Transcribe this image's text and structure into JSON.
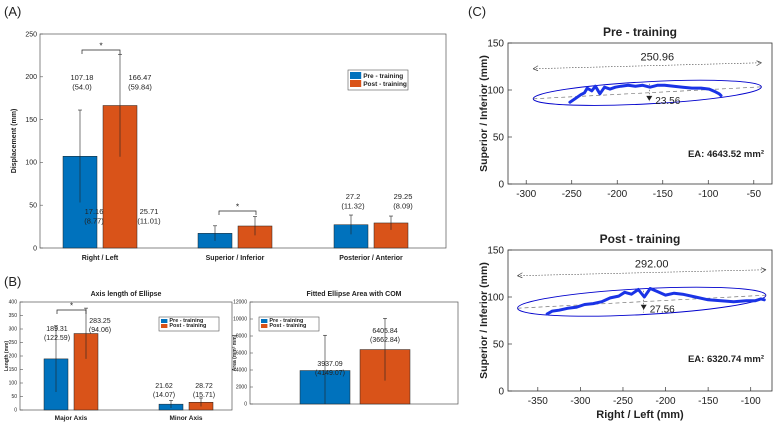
{
  "panel_labels": [
    "(A)",
    "(B)",
    "(C)"
  ],
  "colors": {
    "pre": "#0072BD",
    "post": "#D95319",
    "ellipse": "#0000CC",
    "trace": "#1a33e6"
  },
  "chart_data": [
    {
      "id": "A",
      "type": "bar",
      "title": "",
      "ylabel": "Displacement (mm)",
      "xlabel": "",
      "ylim": [
        0,
        250
      ],
      "yticks": [
        0,
        50,
        100,
        150,
        200,
        250
      ],
      "categories": [
        "Right / Left",
        "Superior / Inferior",
        "Posterior / Anterior"
      ],
      "series": [
        {
          "name": "Pre - training",
          "values": [
            107.18,
            17.16,
            27.2
          ],
          "errors": [
            54.0,
            8.77,
            11.32
          ]
        },
        {
          "name": "Post - training",
          "values": [
            166.47,
            25.71,
            29.25
          ],
          "errors": [
            59.84,
            11.01,
            8.09
          ]
        }
      ],
      "labels": [
        [
          "107.18",
          "(54.0)",
          "166.47",
          "(59.84)"
        ],
        [
          "17.16",
          "(8.77)",
          "25.71",
          "(11.01)"
        ],
        [
          "27.2",
          "(11.32)",
          "29.25",
          "(8.09)"
        ]
      ],
      "significance": [
        "*",
        "*",
        ""
      ],
      "legend_position": "top-right"
    },
    {
      "id": "B1",
      "type": "bar",
      "title": "Axis length of Ellipse",
      "ylabel": "Length (mm)",
      "xlabel": "",
      "ylim": [
        0,
        400
      ],
      "yticks": [
        0,
        50,
        100,
        150,
        200,
        250,
        300,
        350,
        400
      ],
      "categories": [
        "Major Axis",
        "Minor Axis"
      ],
      "series": [
        {
          "name": "Pre - training",
          "values": [
            189.31,
            21.62
          ],
          "errors": [
            122.59,
            14.07
          ]
        },
        {
          "name": "Post - training",
          "values": [
            283.25,
            28.72
          ],
          "errors": [
            94.06,
            15.71
          ]
        }
      ],
      "labels": [
        [
          "189.31",
          "(122.59)",
          "283.25",
          "(94.06)"
        ],
        [
          "21.62",
          "(14.07)",
          "28.72",
          "(15.71)"
        ]
      ],
      "significance": [
        "*",
        ""
      ],
      "legend_position": "top-right"
    },
    {
      "id": "B2",
      "type": "bar",
      "title": "Fitted Ellipse Area with COM",
      "ylabel": "Area (mm² mm)",
      "xlabel": "",
      "ylim": [
        0,
        12000
      ],
      "yticks": [
        0,
        2000,
        4000,
        6000,
        8000,
        10000,
        12000
      ],
      "categories": [
        ""
      ],
      "series": [
        {
          "name": "Pre - training",
          "values": [
            3937.09
          ],
          "errors": [
            4149.07
          ]
        },
        {
          "name": "Post - training",
          "values": [
            6405.84
          ],
          "errors": [
            3662.84
          ]
        }
      ],
      "labels": [
        [
          "3937.09",
          "(4149.07)",
          "6405.84",
          "(3662.84)"
        ]
      ],
      "legend_position": "top-left"
    },
    {
      "id": "C1",
      "type": "line",
      "title": "Pre - training",
      "xlabel": "",
      "ylabel": "Superior / Inferior (mm)",
      "xlim": [
        -320,
        -30
      ],
      "ylim": [
        0,
        150
      ],
      "xticks": [
        -300,
        -250,
        -200,
        -150,
        -100,
        -50
      ],
      "yticks": [
        0,
        50,
        100,
        150
      ],
      "ellipse": {
        "cx": -167,
        "cy": 97,
        "width": 250.96,
        "height": 23.56,
        "angle_deg": 3
      },
      "trace_x": [
        -252,
        -246,
        -240,
        -236,
        -233,
        -228,
        -224,
        -219,
        -214,
        -208,
        -202,
        -196,
        -188,
        -180,
        -172,
        -164,
        -156,
        -148,
        -138,
        -128,
        -118,
        -108,
        -99,
        -92,
        -88,
        -86
      ],
      "trace_y": [
        87,
        91,
        95,
        97,
        102,
        99,
        104,
        96,
        103,
        101,
        103,
        104,
        105,
        104,
        105,
        103,
        105,
        105,
        104,
        103,
        102,
        102,
        101,
        98,
        96,
        94
      ],
      "annotations": {
        "width_label": "250.96",
        "height_label": "23.56",
        "area_label": "EA: 4643.52 mm²"
      }
    },
    {
      "id": "C2",
      "type": "line",
      "title": "Post - training",
      "xlabel": "Right / Left (mm)",
      "ylabel": "Superior / Inferior (mm)",
      "xlim": [
        -385,
        -75
      ],
      "ylim": [
        0,
        150
      ],
      "xticks": [
        -350,
        -300,
        -250,
        -200,
        -150,
        -100
      ],
      "yticks": [
        0,
        50,
        100,
        150
      ],
      "ellipse": {
        "cx": -228,
        "cy": 95,
        "width": 292.0,
        "height": 27.56,
        "angle_deg": 3
      },
      "trace_x": [
        -339,
        -333,
        -325,
        -315,
        -305,
        -295,
        -285,
        -275,
        -265,
        -255,
        -248,
        -240,
        -232,
        -225,
        -218,
        -210,
        -200,
        -190,
        -180,
        -165,
        -150,
        -135,
        -120,
        -105,
        -95,
        -88,
        -84
      ],
      "trace_y": [
        82,
        85,
        86,
        88,
        89,
        92,
        93,
        95,
        99,
        101,
        105,
        103,
        108,
        100,
        109,
        106,
        102,
        104,
        103,
        100,
        97,
        96,
        95,
        96,
        96,
        98,
        97
      ],
      "annotations": {
        "width_label": "292.00",
        "height_label": "27.56",
        "area_label": "EA: 6320.74 mm²"
      }
    }
  ]
}
